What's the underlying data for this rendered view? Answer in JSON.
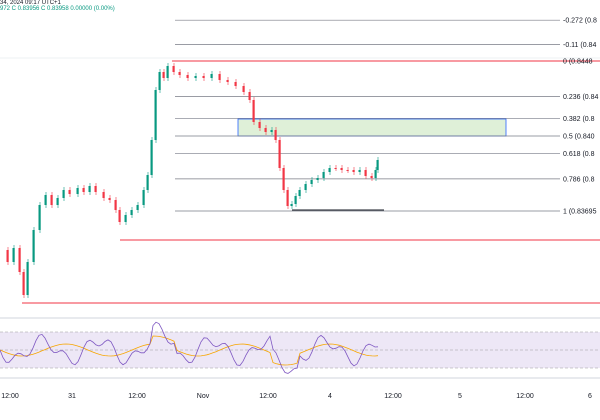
{
  "header": {
    "title_fragment": "34, 2024 09:17 UTC+1",
    "ohlc_fragment": "972  C 0.83956  C 0.83958  0.00000 (0.00%)"
  },
  "colors": {
    "up": "#089981",
    "down": "#f23645",
    "fib_line": "#787b86",
    "zone_fill": "#dff0d8",
    "zone_border": "#2962ff",
    "support_line": "#f23645",
    "rsi_band": "#ede7f6",
    "rsi_line": "#7e57c2",
    "rsi_ma": "#f7a600"
  },
  "fib_levels": [
    {
      "ratio": -0.272,
      "label": "-0.272 (0.8"
    },
    {
      "ratio": -0.11,
      "label": "-0.11 (0.84"
    },
    {
      "ratio": 0,
      "label": "0 (0.8448"
    },
    {
      "ratio": 0.236,
      "label": "0.236 (0.84"
    },
    {
      "ratio": 0.382,
      "label": "0.382 (0.8"
    },
    {
      "ratio": 0.5,
      "label": "0.5 (0.840"
    },
    {
      "ratio": 0.618,
      "label": "0.618 (0.8"
    },
    {
      "ratio": 0.786,
      "label": "0.786 (0.8"
    },
    {
      "ratio": 1,
      "label": "1 (0.83695"
    }
  ],
  "x_axis": {
    "labels": [
      "12:00",
      "31",
      "12:00",
      "Nov",
      "12:00",
      "4",
      "12:00",
      "5",
      "12:00",
      "6"
    ]
  },
  "icons": {
    "crosshair": "crosshair-icon"
  }
}
